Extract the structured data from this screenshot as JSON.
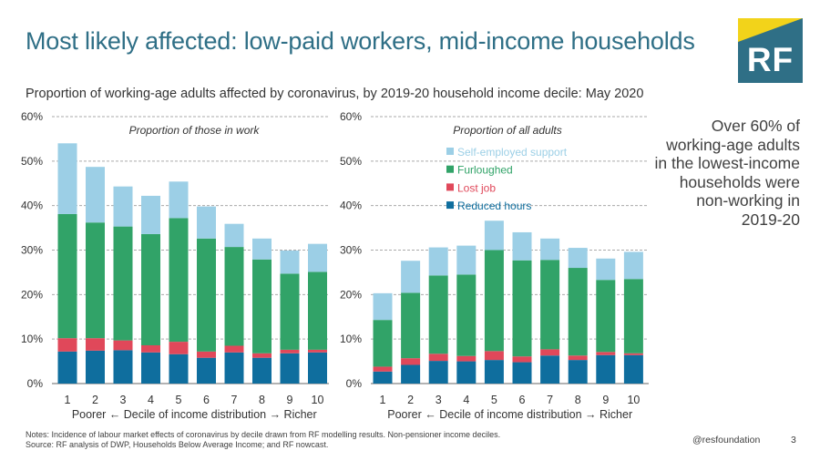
{
  "header": {
    "title": "Most likely affected: low-paid workers, mid-income households",
    "logo_text": "RF",
    "subtitle": "Proportion of working-age adults affected by coronavirus, by 2019-20 household income decile: May 2020"
  },
  "callout": "Over 60% of working-age adults in the lowest-income households were non-working in 2019-20",
  "colors": {
    "reduced_hours": "#0f6e9e",
    "lost_job": "#e0485a",
    "furloughed": "#31a368",
    "self_employed": "#9ccfe6",
    "grid": "#aaaaaa"
  },
  "legend": [
    {
      "key": "self_employed",
      "label": "Self-employed support"
    },
    {
      "key": "furloughed",
      "label": "Furloughed"
    },
    {
      "key": "lost_job",
      "label": "Lost job"
    },
    {
      "key": "reduced_hours",
      "label": "Reduced hours"
    }
  ],
  "chart_data": [
    {
      "type": "bar",
      "stacked": true,
      "title": "Proportion of those in work",
      "categories": [
        "1",
        "2",
        "3",
        "4",
        "5",
        "6",
        "7",
        "8",
        "9",
        "10"
      ],
      "xlabel": "Poorer ← Decile of income distribution → Richer",
      "ylabel": "",
      "yticks": [
        "0%",
        "10%",
        "20%",
        "30%",
        "40%",
        "50%",
        "60%"
      ],
      "ylim": [
        0,
        60
      ],
      "series": [
        {
          "key": "reduced_hours",
          "name": "Reduced hours",
          "values": [
            7.2,
            7.4,
            7.5,
            7.0,
            6.6,
            5.8,
            7.0,
            5.8,
            6.8,
            7.0
          ]
        },
        {
          "key": "lost_job",
          "name": "Lost job",
          "values": [
            3.0,
            2.8,
            2.2,
            1.6,
            2.8,
            1.4,
            1.5,
            1.0,
            0.8,
            0.6
          ]
        },
        {
          "key": "furloughed",
          "name": "Furloughed",
          "values": [
            27.9,
            26.0,
            25.6,
            25.0,
            27.8,
            25.4,
            22.2,
            21.1,
            17.1,
            17.5
          ]
        },
        {
          "key": "self_employed",
          "name": "Self-employed support",
          "values": [
            15.9,
            12.5,
            9.0,
            8.6,
            8.2,
            7.2,
            5.2,
            4.7,
            5.2,
            6.3
          ]
        }
      ]
    },
    {
      "type": "bar",
      "stacked": true,
      "title": "Proportion of all adults",
      "categories": [
        "1",
        "2",
        "3",
        "4",
        "5",
        "6",
        "7",
        "8",
        "9",
        "10"
      ],
      "xlabel": "Poorer ← Decile of income distribution → Richer",
      "ylabel": "",
      "yticks": [
        "0%",
        "10%",
        "20%",
        "30%",
        "40%",
        "50%",
        "60%"
      ],
      "ylim": [
        0,
        60
      ],
      "series": [
        {
          "key": "reduced_hours",
          "name": "Reduced hours",
          "values": [
            2.7,
            4.2,
            5.1,
            5.0,
            5.3,
            4.8,
            6.3,
            5.3,
            6.4,
            6.4
          ]
        },
        {
          "key": "lost_job",
          "name": "Lost job",
          "values": [
            1.1,
            1.5,
            1.6,
            1.2,
            2.0,
            1.3,
            1.4,
            1.0,
            0.7,
            0.4
          ]
        },
        {
          "key": "furloughed",
          "name": "Furloughed",
          "values": [
            10.5,
            14.7,
            17.6,
            18.3,
            22.7,
            21.6,
            20.1,
            19.7,
            16.2,
            16.7
          ]
        },
        {
          "key": "self_employed",
          "name": "Self-employed support",
          "values": [
            6.0,
            7.2,
            6.3,
            6.5,
            6.6,
            6.3,
            4.8,
            4.5,
            4.8,
            6.1
          ]
        }
      ]
    }
  ],
  "footer": {
    "notes_line1": "Notes: Incidence of labour market effects of coronavirus by decile drawn from RF modelling results. Non-pensioner income deciles.",
    "notes_line2": "Source: RF analysis of DWP, Households Below Average Income; and RF nowcast.",
    "handle": "@resfoundation",
    "page": "3"
  }
}
